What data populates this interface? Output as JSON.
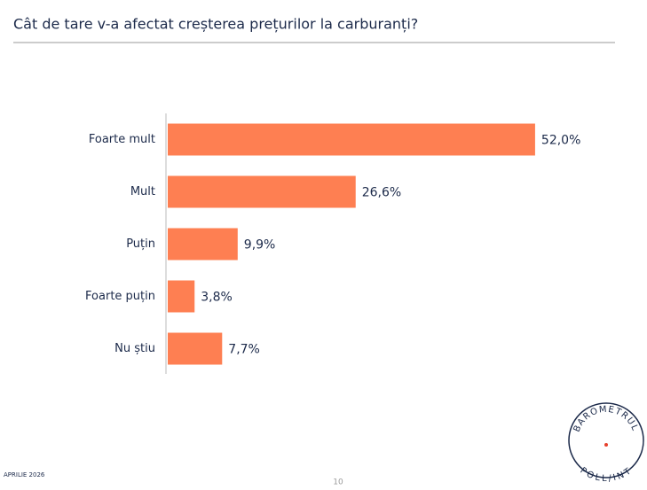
{
  "chart_data": {
    "type": "bar",
    "orientation": "horizontal",
    "title": "Cât de tare v-a afectat creșterea prețurilor la carburanți?",
    "categories": [
      "Foarte mult",
      "Mult",
      "Puțin",
      "Foarte puțin",
      "Nu știu"
    ],
    "values": [
      52.0,
      26.6,
      9.9,
      3.8,
      7.7
    ],
    "value_labels": [
      "52,0%",
      "26,6%",
      "9,9%",
      "3,8%",
      "7,7%"
    ],
    "color": "#fe7f52"
  },
  "footer": {
    "date": "APRILIE 2026",
    "page": "10"
  },
  "logo": {
    "top": "BAROMETRUL",
    "bottom": "POLL/INT"
  }
}
